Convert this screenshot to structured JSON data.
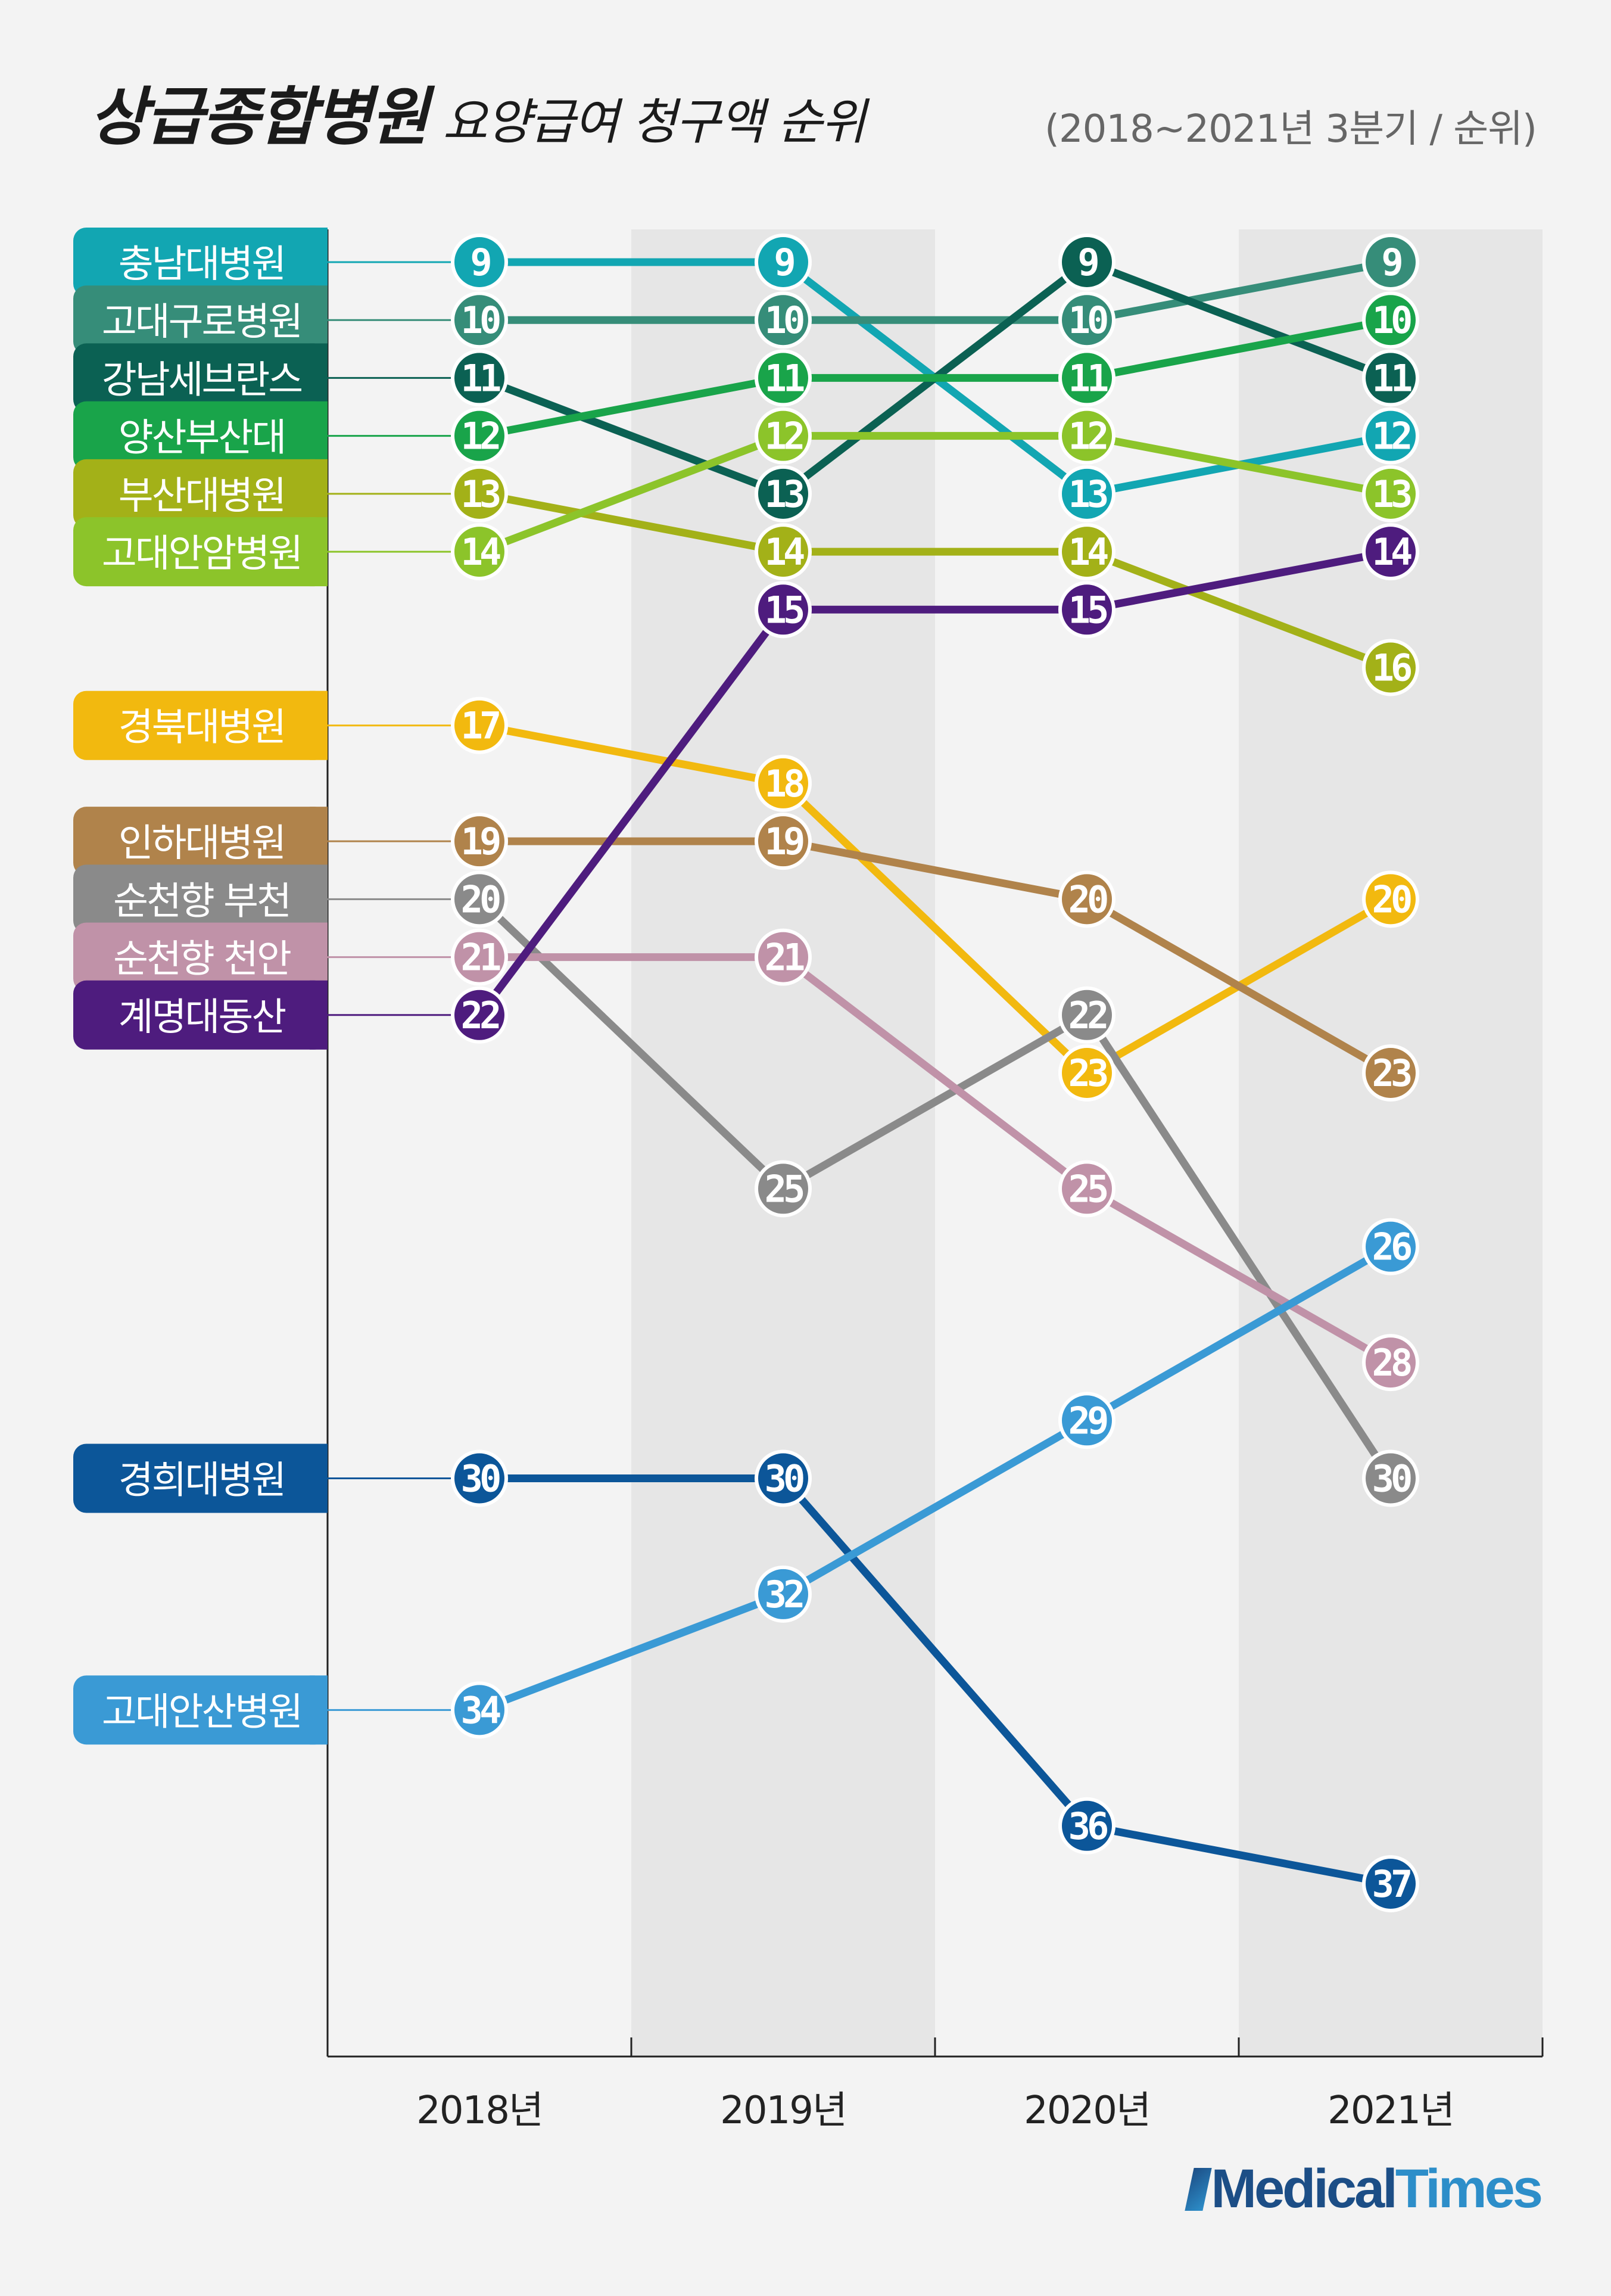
{
  "title": "상급종합병원",
  "subtitle": "요양급여 청구액 순위",
  "note": "(2018~2021년 3분기 / 순위)",
  "brand": {
    "part1": "Medical",
    "part2": "Times"
  },
  "chart_data": {
    "type": "line",
    "chart_kind": "bump",
    "categories": [
      "2018년",
      "2019년",
      "2020년",
      "2021년"
    ],
    "y_axis": "rank",
    "y_inverted": true,
    "ylim": [
      9,
      37
    ],
    "alternating_column_shading": true,
    "series": [
      {
        "name": "충남대병원",
        "color": "#12a6b2",
        "values": [
          9,
          9,
          13,
          12
        ]
      },
      {
        "name": "고대구로병원",
        "color": "#368d79",
        "values": [
          10,
          10,
          10,
          9
        ]
      },
      {
        "name": "강남세브란스",
        "color": "#0b6153",
        "values": [
          11,
          13,
          9,
          11
        ]
      },
      {
        "name": "양산부산대",
        "color": "#19a44a",
        "values": [
          12,
          11,
          11,
          10
        ]
      },
      {
        "name": "부산대병원",
        "color": "#a3b118",
        "values": [
          13,
          14,
          14,
          16
        ]
      },
      {
        "name": "고대안암병원",
        "color": "#8cc42a",
        "values": [
          14,
          12,
          12,
          13
        ]
      },
      {
        "name": "경북대병원",
        "color": "#f2b90f",
        "values": [
          17,
          18,
          23,
          20
        ]
      },
      {
        "name": "인하대병원",
        "color": "#b0834b",
        "values": [
          19,
          19,
          20,
          23
        ]
      },
      {
        "name": "순천향 부천",
        "color": "#8a8a8a",
        "values": [
          20,
          25,
          22,
          30
        ]
      },
      {
        "name": "순천향 천안",
        "color": "#c092a8",
        "values": [
          21,
          21,
          25,
          28
        ]
      },
      {
        "name": "계명대동산",
        "color": "#4e1c7e",
        "values": [
          22,
          15,
          15,
          14
        ]
      },
      {
        "name": "경희대병원",
        "color": "#0c5699",
        "values": [
          30,
          30,
          36,
          37
        ]
      },
      {
        "name": "고대안산병원",
        "color": "#3a9ad5",
        "values": [
          34,
          32,
          29,
          26
        ]
      }
    ]
  }
}
